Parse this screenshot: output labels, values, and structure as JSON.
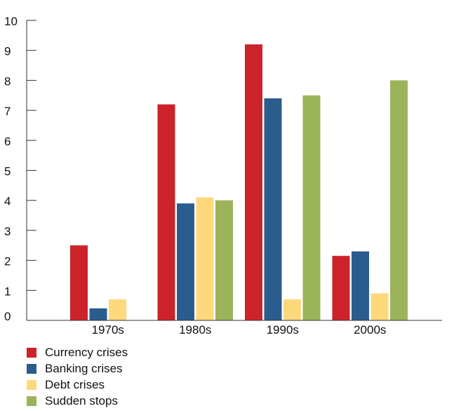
{
  "chart_data": {
    "type": "bar",
    "categories": [
      "1970s",
      "1980s",
      "1990s",
      "2000s"
    ],
    "series": [
      {
        "name": "Currency crises",
        "color": "#cc2229",
        "values": [
          2.5,
          7.2,
          9.2,
          2.15
        ]
      },
      {
        "name": "Banking crises",
        "color": "#2b5c8e",
        "values": [
          0.4,
          3.9,
          7.4,
          2.3
        ]
      },
      {
        "name": "Debt crises",
        "color": "#fed97c",
        "values": [
          0.7,
          4.1,
          0.7,
          0.9
        ]
      },
      {
        "name": "Sudden stops",
        "color": "#9bb45a",
        "values": [
          0,
          4.0,
          7.5,
          8.0
        ]
      }
    ],
    "ylim": [
      0,
      10
    ],
    "yticks": [
      0,
      1,
      2,
      3,
      4,
      5,
      6,
      7,
      8,
      9,
      10
    ],
    "title": "",
    "xlabel": "",
    "ylabel": "",
    "grid": false,
    "legend_position": "bottom-left"
  }
}
